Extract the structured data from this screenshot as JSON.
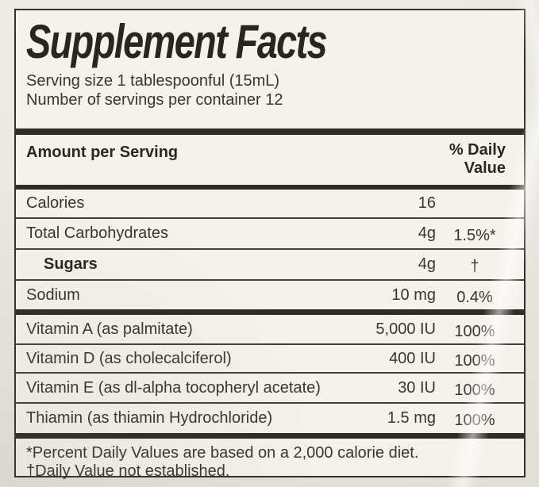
{
  "label": {
    "title": "Supplement Facts",
    "serving_lines": [
      "Serving size 1 tablespoonful (15mL)",
      "Number of servings per container 12"
    ],
    "header": {
      "amount_col": "Amount per Serving",
      "dv_col_line1": "% Daily",
      "dv_col_line2": "Value"
    },
    "rows": [
      {
        "name": "Calories",
        "amount": "16",
        "dv": ""
      },
      {
        "name": "Total Carbohydrates",
        "amount": "4g",
        "dv": "1.5%*"
      },
      {
        "name": "Sugars",
        "amount": "4g",
        "dv": "†"
      },
      {
        "name": "Sodium",
        "amount": "10 mg",
        "dv": "0.4%"
      },
      {
        "name": "Vitamin A (as palmitate)",
        "amount": "5,000 IU",
        "dv": "100%"
      },
      {
        "name": "Vitamin D (as cholecalciferol)",
        "amount": "400 IU",
        "dv": "100%"
      },
      {
        "name": "Vitamin E (as dl-alpha tocopheryl acetate)",
        "amount": "30 IU",
        "dv": "100%"
      },
      {
        "name": "Thiamin (as thiamin Hydrochloride)",
        "amount": "1.5 mg",
        "dv": "100%"
      }
    ],
    "footnotes": [
      "*Percent Daily Values are based on a 2,000 calorie diet.",
      "†Daily Value not established."
    ]
  },
  "colors": {
    "page_background": "#e8e6e0",
    "label_background": "#f4f2ec",
    "ink": "#2f2b25"
  }
}
